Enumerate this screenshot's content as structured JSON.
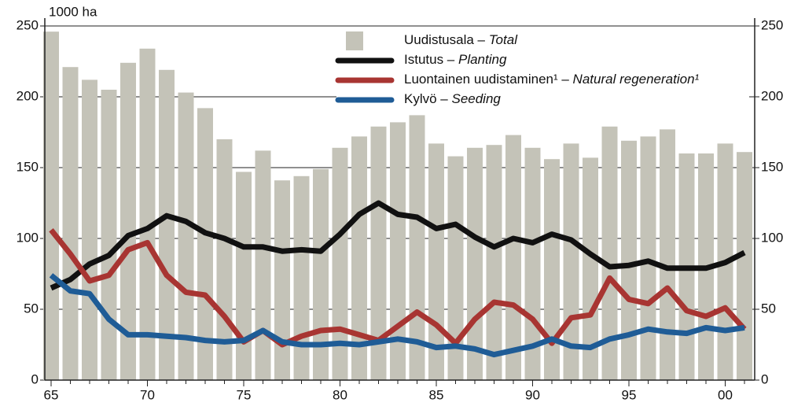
{
  "chart_data": {
    "type": "bar-line",
    "y_label": "1000 ha",
    "categories": [
      "65",
      null,
      null,
      null,
      null,
      "70",
      null,
      null,
      null,
      null,
      "75",
      null,
      null,
      null,
      null,
      "80",
      null,
      null,
      null,
      null,
      "85",
      null,
      null,
      null,
      null,
      "90",
      null,
      null,
      null,
      null,
      "95",
      null,
      null,
      null,
      null,
      "00",
      null
    ],
    "series": [
      {
        "name": "Uudistusala – Total",
        "type": "bar",
        "color": "#c4c3b8",
        "values": [
          246,
          221,
          212,
          205,
          224,
          234,
          219,
          203,
          192,
          170,
          147,
          162,
          141,
          144,
          149,
          164,
          172,
          179,
          182,
          187,
          167,
          158,
          164,
          166,
          173,
          164,
          156,
          167,
          157,
          179,
          169,
          172,
          177,
          160,
          160,
          167,
          161
        ]
      },
      {
        "name": "Istutus – Planting",
        "type": "line",
        "color": "#111111",
        "values": [
          65,
          71,
          82,
          88,
          102,
          107,
          116,
          112,
          104,
          100,
          94,
          94,
          91,
          92,
          91,
          103,
          117,
          125,
          117,
          115,
          107,
          110,
          101,
          94,
          100,
          97,
          103,
          99,
          89,
          80,
          81,
          84,
          79,
          79,
          79,
          83,
          90
        ]
      },
      {
        "name": "Luontainen uudistaminen¹ – Natural regeneration¹",
        "type": "line",
        "color": "#a83532",
        "values": [
          106,
          89,
          70,
          74,
          92,
          97,
          74,
          62,
          60,
          45,
          27,
          35,
          25,
          31,
          35,
          36,
          32,
          28,
          38,
          48,
          39,
          26,
          43,
          55,
          53,
          43,
          26,
          44,
          46,
          72,
          57,
          54,
          65,
          49,
          45,
          51,
          36
        ]
      },
      {
        "name": "Kylvö – Seeding",
        "type": "line",
        "color": "#1f5c96",
        "values": [
          74,
          63,
          61,
          43,
          32,
          32,
          31,
          30,
          28,
          27,
          28,
          35,
          27,
          25,
          25,
          26,
          25,
          27,
          29,
          27,
          23,
          24,
          22,
          18,
          21,
          24,
          29,
          24,
          23,
          29,
          32,
          36,
          34,
          33,
          37,
          35,
          37
        ]
      }
    ],
    "ylim": [
      0,
      250
    ],
    "yticks": [
      0,
      50,
      100,
      150,
      200,
      250
    ],
    "y2lim": [
      0,
      250
    ],
    "y2ticks": [
      0,
      50,
      100,
      150,
      200,
      250
    ],
    "grid": true,
    "legend": "upper right"
  }
}
